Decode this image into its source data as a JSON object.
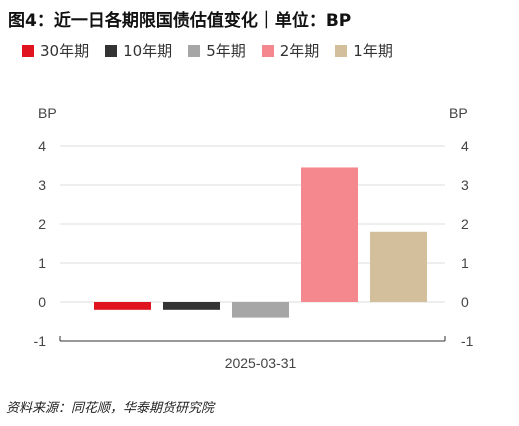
{
  "header": {
    "title": "图4：近一日各期限国债估值变化｜单位：BP"
  },
  "chart_data": {
    "type": "bar",
    "categories": [
      "2025-03-31"
    ],
    "series": [
      {
        "name": "30年期",
        "values": [
          -0.2
        ],
        "color": "#e0141e"
      },
      {
        "name": "10年期",
        "values": [
          -0.2
        ],
        "color": "#333333"
      },
      {
        "name": "5年期",
        "values": [
          -0.4
        ],
        "color": "#a6a6a6"
      },
      {
        "name": "2年期",
        "values": [
          3.45
        ],
        "color": "#f4888e"
      },
      {
        "name": "1年期",
        "values": [
          1.8
        ],
        "color": "#d4bf9c"
      }
    ],
    "ylabel_left": "BP",
    "ylabel_right": "BP",
    "ylim": [
      -1,
      4
    ],
    "yticks": [
      -1,
      0,
      1,
      2,
      3,
      4
    ],
    "grid": true,
    "legend": "top-left"
  },
  "footer": {
    "source": "资料来源：同花顺，华泰期货研究院"
  }
}
